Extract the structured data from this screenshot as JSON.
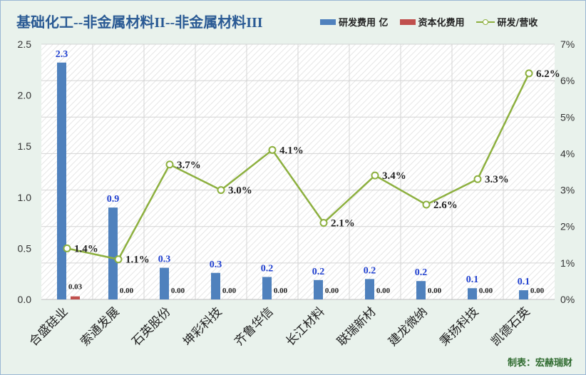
{
  "title": "基础化工--非金属材料II--非金属材料III",
  "legend": {
    "rd": "研发费用 亿",
    "cap": "资本化费用",
    "ratio": "研发/营收"
  },
  "credit": "制表：宏赫瑞财",
  "colors": {
    "rd": "#4f81bd",
    "cap": "#c0504d",
    "ratio": "#8db03f",
    "value_label": "#1f3fcf"
  },
  "chart_data": {
    "type": "bar",
    "categories": [
      "合盛硅业",
      "索通发展",
      "石英股份",
      "坤彩科技",
      "齐鲁华信",
      "长江材料",
      "联瑞新材",
      "建龙微纳",
      "秉扬科技",
      "凯德石英"
    ],
    "series": [
      {
        "name": "研发费用 亿",
        "type": "bar",
        "axis": "left",
        "values": [
          2.3,
          0.9,
          0.3,
          0.3,
          0.2,
          0.2,
          0.2,
          0.2,
          0.1,
          0.1
        ],
        "labels": [
          "2.3",
          "0.9",
          "0.3",
          "0.3",
          "0.2",
          "0.2",
          "0.2",
          "0.2",
          "0.1",
          "0.1"
        ],
        "plot_values": [
          2.32,
          0.9,
          0.31,
          0.26,
          0.22,
          0.19,
          0.2,
          0.18,
          0.11,
          0.09
        ]
      },
      {
        "name": "资本化费用",
        "type": "bar",
        "axis": "left",
        "values": [
          0.03,
          0,
          0,
          0,
          0,
          0,
          0,
          0,
          0,
          0
        ],
        "labels": [
          "0.03",
          "0.00",
          "0.00",
          "0.00",
          "0.00",
          "0.00",
          "0.00",
          "0.00",
          "0.00",
          "0.00"
        ]
      },
      {
        "name": "研发/营收",
        "type": "line",
        "axis": "right",
        "values": [
          1.4,
          1.1,
          3.7,
          3.0,
          4.1,
          2.1,
          3.4,
          2.6,
          3.3,
          6.2
        ],
        "labels": [
          "1.4%",
          "1.1%",
          "3.7%",
          "3.0%",
          "4.1%",
          "2.1%",
          "3.4%",
          "2.6%",
          "3.3%",
          "6.2%"
        ]
      }
    ],
    "y_left": {
      "min": 0,
      "max": 2.5,
      "ticks": [
        "0.0",
        "0.5",
        "1.0",
        "1.5",
        "2.0",
        "2.5"
      ]
    },
    "y_right": {
      "min": 0,
      "max": 7,
      "ticks": [
        "0%",
        "1%",
        "2%",
        "3%",
        "4%",
        "5%",
        "6%",
        "7%"
      ]
    }
  }
}
